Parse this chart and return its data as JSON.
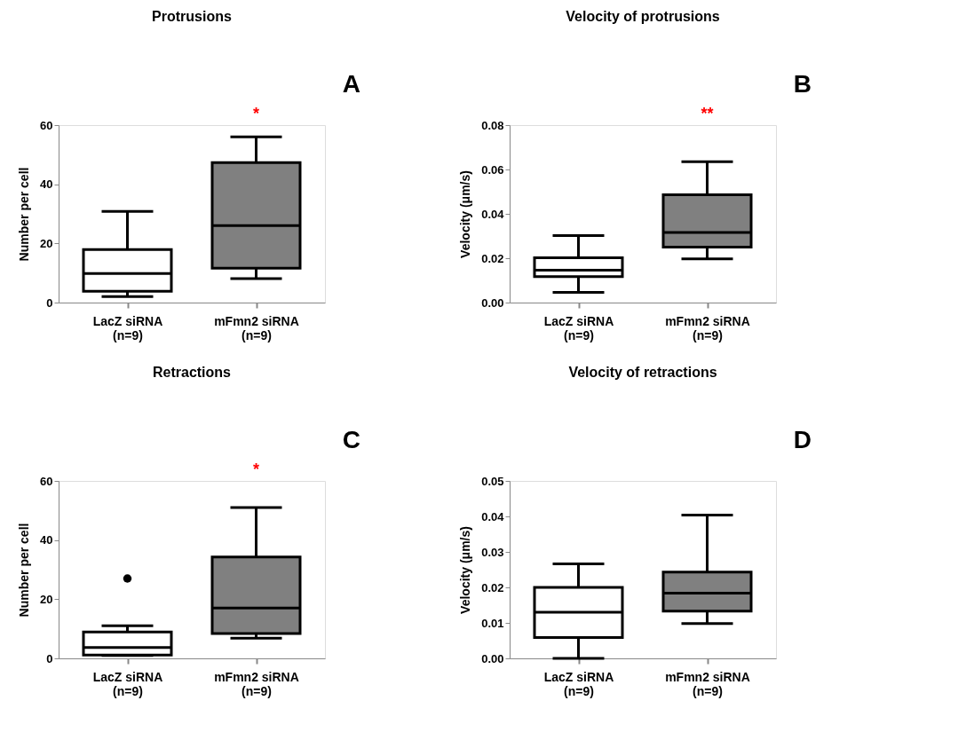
{
  "chart_data": [
    {
      "type": "box",
      "title": "Protrusions",
      "ylabel": "Number per cell",
      "categories": [
        "LacZ siRNA\n(n=9)",
        "mFmn2 siRNA\n(n=9)"
      ],
      "colors": [
        "#ffffff",
        "#808080"
      ],
      "boxes": [
        {
          "low": 2,
          "q1": 3.8,
          "median": 9.8,
          "q3": 17.9,
          "high": 30.8
        },
        {
          "low": 8.1,
          "q1": 11.6,
          "median": 26,
          "q3": 47.3,
          "high": 56
        }
      ],
      "ylim": [
        0,
        60
      ],
      "yticks": [
        0,
        20,
        40,
        60
      ],
      "grid": false,
      "annotations": [
        "A",
        "*"
      ]
    },
    {
      "type": "box",
      "title": "Velocity of protrusions",
      "ylabel": "Velocity (μm/s)",
      "categories": [
        "LacZ siRNA\n(n=9)",
        "mFmn2 siRNA\n(n=9)"
      ],
      "colors": [
        "#ffffff",
        "#808080"
      ],
      "boxes": [
        {
          "low": 0.0046,
          "q1": 0.0117,
          "median": 0.0146,
          "q3": 0.0202,
          "high": 0.0302
        },
        {
          "low": 0.0197,
          "q1": 0.025,
          "median": 0.0316,
          "q3": 0.0486,
          "high": 0.0635
        }
      ],
      "ylim": [
        0,
        0.08
      ],
      "yticks": [
        {
          "value": 0,
          "label": "0.00"
        },
        {
          "value": 0.02,
          "label": "0.02"
        },
        {
          "value": 0.04,
          "label": "0.04"
        },
        {
          "value": 0.06,
          "label": "0.06"
        },
        {
          "value": 0.08,
          "label": "0.08"
        }
      ],
      "grid": false,
      "annotations": [
        "B",
        "**"
      ]
    },
    {
      "type": "box",
      "title": "Retractions",
      "ylabel": "Number per cell",
      "categories": [
        "LacZ siRNA\n(n=9)",
        "mFmn2 siRNA\n(n=9)"
      ],
      "colors": [
        "#ffffff",
        "#808080"
      ],
      "boxes": [
        {
          "low": 1,
          "q1": 1.1,
          "median": 3.7,
          "q3": 8.9,
          "high": 11,
          "outliers": [
            27
          ]
        },
        {
          "low": 6.8,
          "q1": 8.4,
          "median": 17,
          "q3": 34.3,
          "high": 51
        }
      ],
      "ylim": [
        0,
        60
      ],
      "yticks": [
        0,
        20,
        40,
        60
      ],
      "grid": false,
      "annotations": [
        "C",
        "*"
      ]
    },
    {
      "type": "box",
      "title": "Velocity of retractions",
      "ylabel": "Velocity (μm/s)",
      "categories": [
        "LacZ siRNA\n(n=9)",
        "mFmn2 siRNA\n(n=9)"
      ],
      "colors": [
        "#ffffff",
        "#808080"
      ],
      "boxes": [
        {
          "low": 0,
          "q1": 0.0059,
          "median": 0.013,
          "q3": 0.02,
          "high": 0.0266
        },
        {
          "low": 0.0098,
          "q1": 0.0133,
          "median": 0.0184,
          "q3": 0.0243,
          "high": 0.0404
        }
      ],
      "ylim": [
        0,
        0.05
      ],
      "yticks": [
        {
          "value": 0,
          "label": "0.00"
        },
        {
          "value": 0.01,
          "label": "0.01"
        },
        {
          "value": 0.02,
          "label": "0.02"
        },
        {
          "value": 0.03,
          "label": "0.03"
        },
        {
          "value": 0.04,
          "label": "0.04"
        },
        {
          "value": 0.05,
          "label": "0.05"
        }
      ],
      "grid": false,
      "annotations": [
        "D"
      ]
    }
  ]
}
